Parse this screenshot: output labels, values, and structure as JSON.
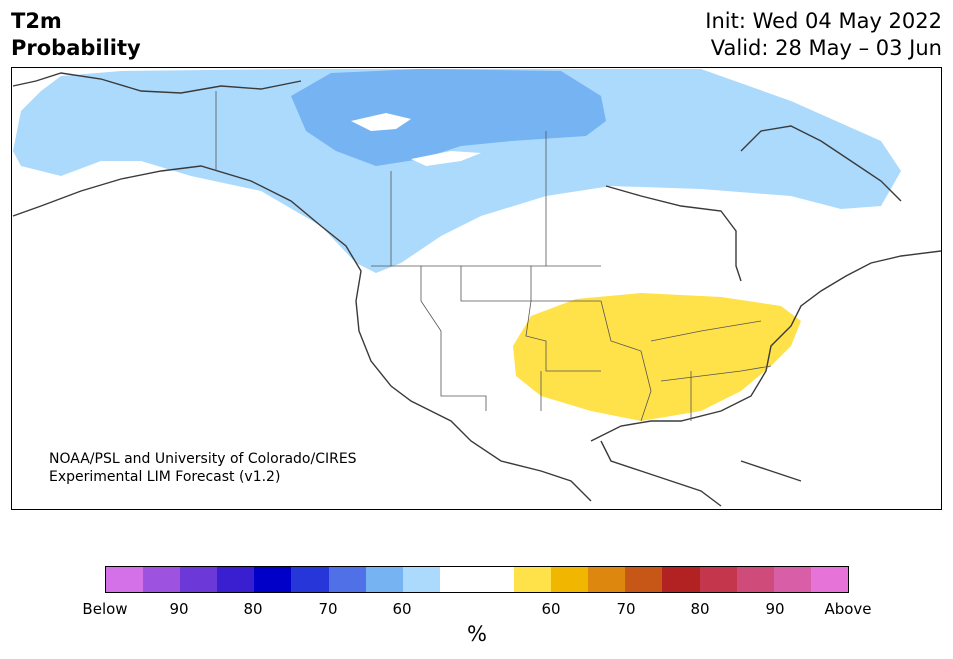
{
  "header": {
    "title_line1": "T2m",
    "title_line2": "Probability",
    "init_text": "Init: Wed 04 May 2022",
    "valid_text": "Valid: 28 May – 03 Jun"
  },
  "credit": {
    "line1": "NOAA/PSL and University of Colorado/CIRES",
    "line2": "Experimental LIM Forecast (v1.2)"
  },
  "map": {
    "region": "North America",
    "below_normal_light_color": "#acdafc",
    "below_normal_medium_color": "#75b3f3",
    "above_normal_color": "#ffe14a",
    "coastline_color": "#3a3a3a"
  },
  "colorbar": {
    "unit": "%",
    "colors": [
      "#d470e8",
      "#9e53e0",
      "#6c39d8",
      "#3a1fd0",
      "#0000c8",
      "#2636d8",
      "#4f70e6",
      "#75b3f3",
      "#acdafc",
      "#ffffff",
      "#ffffff",
      "#ffe14a",
      "#f1b600",
      "#de870e",
      "#c75717",
      "#b22222",
      "#c3364b",
      "#cf4c7a",
      "#d85ea8",
      "#e573d8"
    ],
    "tick_labels": [
      "Below",
      "90",
      "80",
      "70",
      "60",
      "60",
      "70",
      "80",
      "90",
      "Above"
    ]
  }
}
